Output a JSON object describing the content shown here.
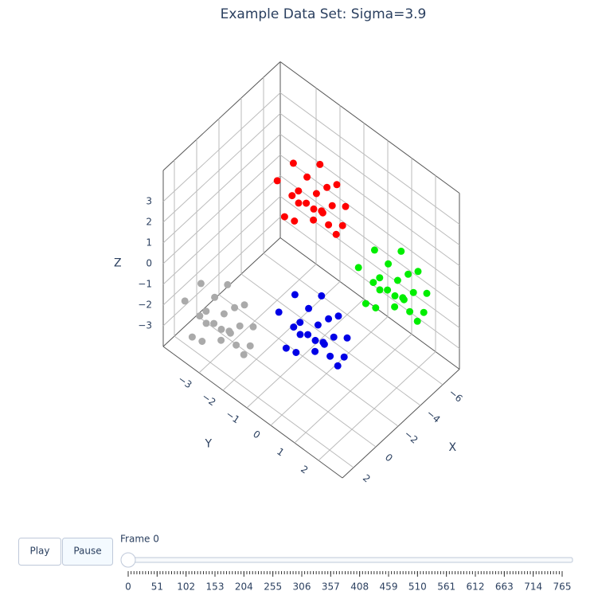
{
  "chart_data": {
    "type": "scatter3d",
    "title": "Example Data Set: Sigma=3.9",
    "xlabel": "X",
    "ylabel": "Y",
    "zlabel": "Z",
    "xlim": [
      -7.5,
      3
    ],
    "ylim": [
      -4.5,
      3
    ],
    "zlim": [
      -4,
      4.5
    ],
    "xticks": [
      {
        "value": -6,
        "label": "−6"
      },
      {
        "value": -4,
        "label": "−4"
      },
      {
        "value": -2,
        "label": "−2"
      },
      0,
      2
    ],
    "yticks": [
      {
        "value": -3,
        "label": "−3"
      },
      {
        "value": -2,
        "label": "−2"
      },
      {
        "value": -1,
        "label": "−1"
      },
      0,
      1,
      2
    ],
    "zticks": [
      {
        "value": -3,
        "label": "−3"
      },
      {
        "value": -2,
        "label": "−2"
      },
      {
        "value": -1,
        "label": "−1"
      },
      0,
      1,
      2,
      3
    ],
    "grid": true,
    "series": [
      {
        "color": "#ff0000",
        "x": [
          -2.7,
          -3.8,
          -1.9,
          -3.2,
          -2.4,
          -4.2,
          -2.9,
          -2.1,
          -3.5,
          -3.0,
          -3.9,
          -2.6,
          -1.7,
          -3.3,
          -2.3,
          -3.6,
          -2.8,
          -4.0,
          -2.5,
          -3.1,
          -2.2,
          -3.4
        ],
        "y": [
          -1.5,
          -0.6,
          -0.8,
          -2.0,
          -0.1,
          -1.3,
          -0.4,
          -1.8,
          0.1,
          -1.0,
          -1.7,
          -0.7,
          -1.2,
          -0.2,
          -2.2,
          -0.9,
          0.3,
          -0.5,
          -1.4,
          -1.9,
          -0.3,
          -1.2
        ],
        "z": [
          3.2,
          2.7,
          3.6,
          2.3,
          2.9,
          3.9,
          4.2,
          2.0,
          3.4,
          2.6,
          3.1,
          3.8,
          2.5,
          1.9,
          3.3,
          2.2,
          3.0,
          3.7,
          2.8,
          4.0,
          3.5,
          1.7
        ]
      },
      {
        "color": "#aaaaaa",
        "x": [
          1.3,
          0.2,
          2.1,
          0.8,
          1.6,
          -0.2,
          1.1,
          1.9,
          0.5,
          1.0,
          0.1,
          1.4,
          2.3,
          0.7,
          1.7,
          0.4,
          1.2,
          0.0,
          1.5,
          0.9,
          1.8,
          0.6
        ],
        "y": [
          -3.5,
          -2.6,
          -2.8,
          -4.0,
          -2.1,
          -3.3,
          -2.4,
          -3.8,
          -1.9,
          -3.0,
          -3.7,
          -2.7,
          -3.2,
          -2.2,
          -4.2,
          -2.9,
          -1.7,
          -2.5,
          -3.4,
          -3.9,
          -2.3,
          -3.2
        ],
        "z": [
          -2.3,
          -2.8,
          -1.9,
          -3.2,
          -2.6,
          -1.6,
          -1.3,
          -3.5,
          -2.1,
          -2.9,
          -2.4,
          -1.7,
          -3.0,
          -3.6,
          -2.2,
          -3.3,
          -2.5,
          -1.8,
          -2.7,
          -1.5,
          -2.0,
          -3.8
        ]
      },
      {
        "color": "#0000e6",
        "x": [
          -0.7,
          -1.8,
          0.1,
          -1.2,
          -0.4,
          -2.2,
          -0.9,
          -0.1,
          -1.5,
          -1.0,
          -1.9,
          -0.6,
          0.3,
          -1.3,
          -0.3,
          -1.6,
          -0.8,
          -2.0,
          -0.5,
          -1.1,
          -0.2,
          -1.4
        ],
        "y": [
          -0.5,
          0.4,
          0.2,
          -1.0,
          0.9,
          -0.3,
          0.6,
          -0.8,
          1.1,
          0.0,
          -0.7,
          0.3,
          -0.2,
          0.8,
          -1.2,
          0.1,
          1.3,
          0.5,
          -0.4,
          -0.9,
          0.7,
          -0.2
        ],
        "z": [
          -1.3,
          -1.8,
          -0.9,
          -2.2,
          -1.6,
          -0.6,
          -0.3,
          -2.5,
          -1.1,
          -1.9,
          -1.4,
          -0.7,
          -2.0,
          -2.6,
          -1.2,
          -2.3,
          -1.5,
          -0.8,
          -1.7,
          -0.5,
          -1.0,
          -2.8
        ]
      },
      {
        "color": "#00ee00",
        "x": [
          -5.7,
          -6.8,
          -4.9,
          -6.2,
          -5.4,
          -7.2,
          -5.9,
          -5.1,
          -6.5,
          -6.0,
          -6.9,
          -5.6,
          -4.7,
          -6.3,
          -5.3,
          -6.6,
          -5.8,
          -7.0,
          -5.5,
          -6.1,
          -5.2,
          -6.4
        ],
        "y": [
          0.5,
          1.4,
          1.2,
          0.0,
          1.9,
          0.7,
          1.6,
          0.2,
          2.1,
          1.0,
          0.3,
          1.3,
          0.8,
          1.8,
          -0.2,
          1.1,
          2.3,
          1.5,
          0.6,
          0.1,
          1.7,
          0.8
        ],
        "z": [
          -0.8,
          -1.3,
          -0.4,
          -1.7,
          -1.1,
          -0.1,
          0.2,
          -2.0,
          -0.6,
          -1.4,
          -0.9,
          -0.2,
          -1.5,
          -2.1,
          -0.7,
          -1.8,
          -1.0,
          -0.3,
          -1.2,
          0.0,
          -0.5,
          -2.3
        ]
      }
    ]
  },
  "controls": {
    "buttons": [
      "Play",
      "Pause"
    ],
    "slider_label": "Frame 0",
    "slider_ticks": [
      0,
      51,
      102,
      153,
      204,
      255,
      306,
      357,
      408,
      459,
      510,
      561,
      612,
      663,
      714,
      765
    ]
  }
}
